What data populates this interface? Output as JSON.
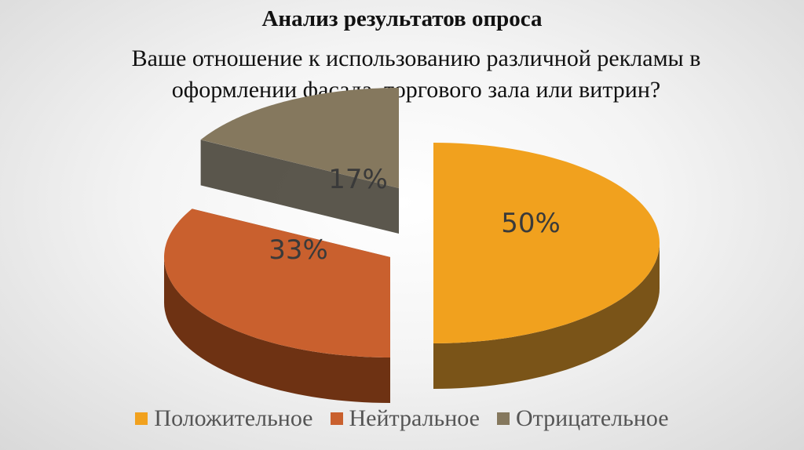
{
  "title": "Анализ результатов опроса",
  "subtitle": "Ваше отношение к использованию различной рекламы в оформлении фасада, торгового зала или витрин?",
  "chart_data": {
    "type": "pie",
    "three_d": true,
    "exploded": true,
    "slices": [
      {
        "name": "Положительное",
        "value": 50,
        "label": "50%",
        "color": "#F1A11E",
        "side_color": "#7A5418"
      },
      {
        "name": "Нейтральное",
        "value": 33,
        "label": "33%",
        "color": "#C9602E",
        "side_color": "#6E3213"
      },
      {
        "name": "Отрицательное",
        "value": 17,
        "label": "17%",
        "color": "#85785E",
        "side_color": "#3E3A2E"
      }
    ],
    "legend_position": "bottom"
  }
}
